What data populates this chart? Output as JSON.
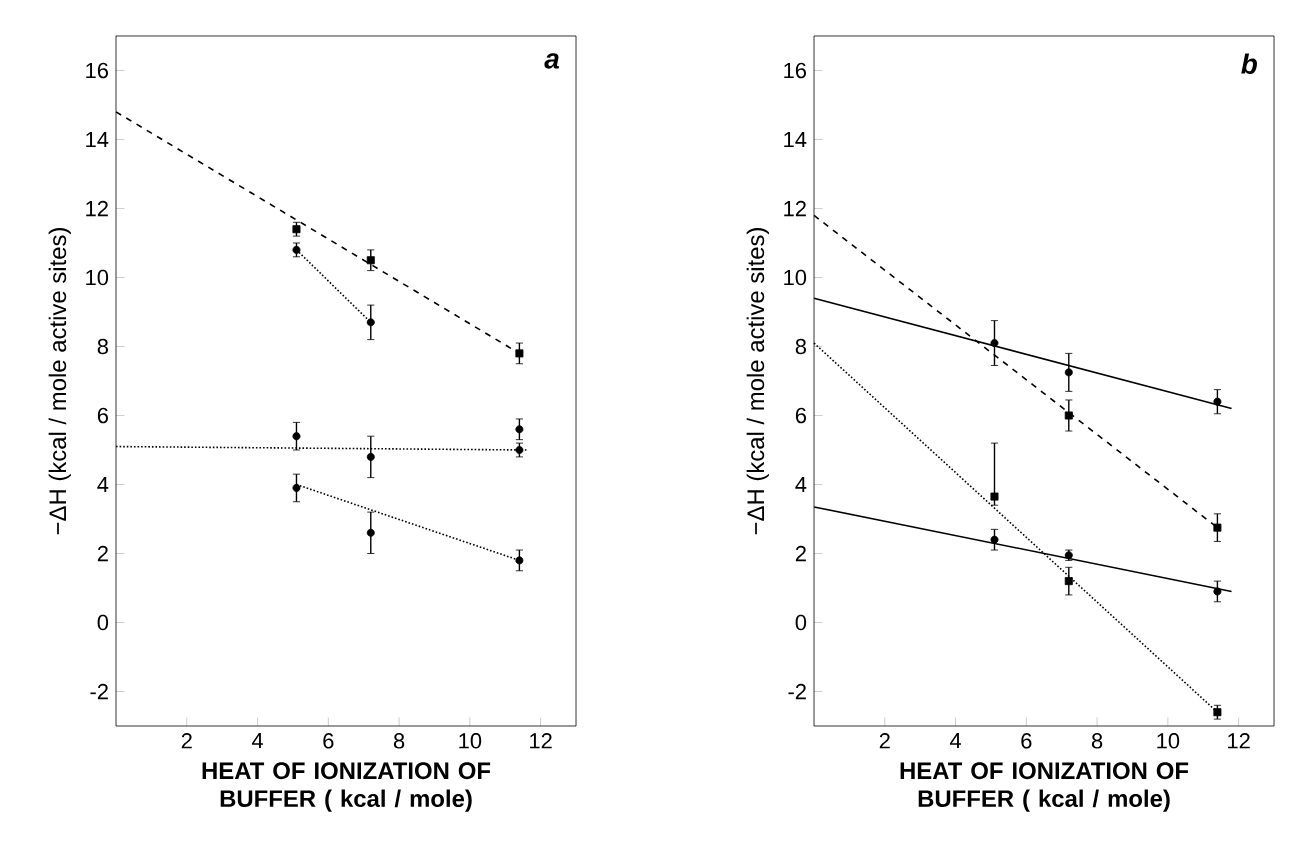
{
  "chart_data": [
    {
      "type": "scatter",
      "ylabel": "−ΔH (kcal / mole active sites)",
      "xlabel": "HEAT OF IONIZATION OF BUFFER ( kcal / mole)",
      "annotations": [
        "a"
      ],
      "xlim": [
        0,
        13
      ],
      "ylim": [
        -3,
        17
      ],
      "xticks": [
        2,
        4,
        6,
        8,
        10,
        12
      ],
      "yticks": [
        -2,
        0,
        2,
        4,
        6,
        8,
        10,
        12,
        14,
        16
      ],
      "series": [
        {
          "color": "#000000",
          "marker": "square",
          "x": [
            5.1,
            7.2,
            11.4
          ],
          "values": [
            11.4,
            10.5,
            7.8
          ],
          "errors": [
            0.2,
            0.3,
            0.3
          ]
        },
        {
          "color": "#000000",
          "marker": "circle",
          "x": [
            5.1,
            7.2
          ],
          "values": [
            10.8,
            8.7
          ],
          "errors": [
            0.2,
            0.5
          ]
        },
        {
          "color": "#000000",
          "marker": "circle",
          "x": [
            5.1,
            7.2,
            11.4
          ],
          "values": [
            5.4,
            4.8,
            5.0
          ],
          "errors": [
            0.4,
            0.6,
            0.2
          ]
        },
        {
          "color": "#000000",
          "marker": "circle",
          "x": [
            5.1,
            7.2,
            11.4
          ],
          "values": [
            3.9,
            2.6,
            1.8
          ],
          "errors": [
            0.4,
            0.6,
            0.3
          ]
        },
        {
          "color": "#000000",
          "marker": "circle",
          "x": [
            11.4
          ],
          "values": [
            5.6
          ],
          "errors": [
            0.3
          ]
        },
        {
          "type": "line",
          "color": "#000000",
          "line_style": "dashed",
          "marker": "none",
          "x": [
            0,
            11.4
          ],
          "values": [
            14.8,
            7.8
          ]
        },
        {
          "type": "line",
          "color": "#000000",
          "line_style": "dotted",
          "marker": "none",
          "x": [
            5.1,
            7.2
          ],
          "values": [
            10.8,
            8.7
          ]
        },
        {
          "type": "line",
          "color": "#000000",
          "line_style": "dotted",
          "marker": "none",
          "x": [
            0,
            11.6
          ],
          "values": [
            5.1,
            5.0
          ]
        },
        {
          "type": "line",
          "color": "#000000",
          "line_style": "dotted",
          "marker": "none",
          "x": [
            5.1,
            11.4
          ],
          "values": [
            4.0,
            1.8
          ]
        }
      ]
    },
    {
      "type": "scatter",
      "ylabel": "−ΔH (kcal / mole active sites)",
      "xlabel": "HEAT OF IONIZATION OF BUFFER ( kcal / mole)",
      "annotations": [
        "b"
      ],
      "xlim": [
        0,
        13
      ],
      "ylim": [
        -3,
        17
      ],
      "xticks": [
        2,
        4,
        6,
        8,
        10,
        12
      ],
      "yticks": [
        -2,
        0,
        2,
        4,
        6,
        8,
        10,
        12,
        14,
        16
      ],
      "series": [
        {
          "color": "#000000",
          "marker": "circle",
          "x": [
            5.1,
            7.2,
            11.4
          ],
          "values": [
            8.1,
            7.25,
            6.4
          ],
          "errors": [
            0.65,
            0.55,
            0.35
          ]
        },
        {
          "color": "#000000",
          "marker": "square",
          "x": [
            7.2,
            11.4
          ],
          "values": [
            6.0,
            2.75
          ],
          "errors": [
            0.45,
            0.4
          ]
        },
        {
          "color": "#000000",
          "marker": "circle",
          "x": [
            5.1,
            7.2,
            11.4
          ],
          "values": [
            2.4,
            1.95,
            0.9
          ],
          "errors": [
            0.3,
            0.15,
            0.3
          ]
        },
        {
          "color": "#000000",
          "marker": "square",
          "x": [
            5.1,
            7.2,
            11.4
          ],
          "values": [
            3.65,
            1.2,
            -2.6
          ],
          "errors": [
            [
              3.4,
              5.2
            ],
            0.4,
            0.2
          ]
        },
        {
          "type": "line",
          "color": "#000000",
          "line_style": "solid",
          "marker": "none",
          "x": [
            0,
            11.8
          ],
          "values": [
            9.4,
            6.2
          ]
        },
        {
          "type": "line",
          "color": "#000000",
          "line_style": "solid",
          "marker": "none",
          "x": [
            0,
            11.8
          ],
          "values": [
            3.35,
            0.9
          ]
        },
        {
          "type": "line",
          "color": "#000000",
          "line_style": "dashed",
          "marker": "none",
          "x": [
            0,
            11.4
          ],
          "values": [
            11.8,
            2.75
          ]
        },
        {
          "type": "line",
          "color": "#000000",
          "line_style": "dotted",
          "marker": "none",
          "x": [
            0,
            11.4
          ],
          "values": [
            8.1,
            -2.6
          ]
        }
      ]
    }
  ]
}
